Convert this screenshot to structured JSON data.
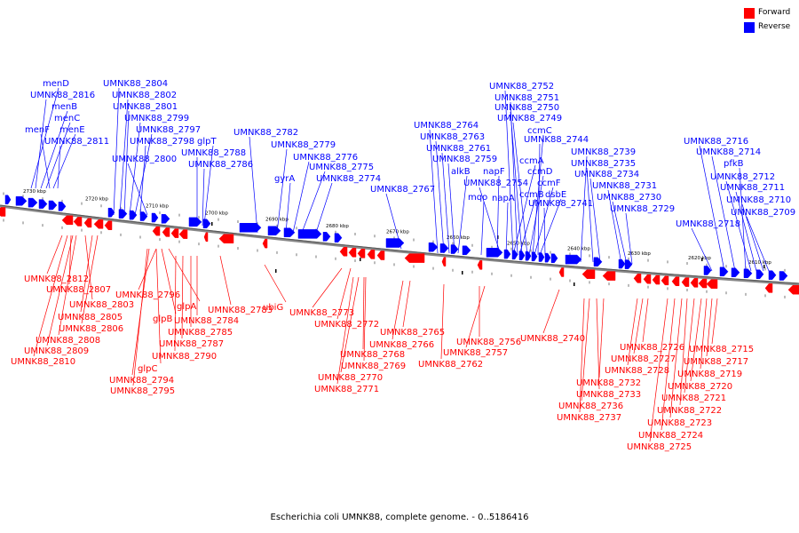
{
  "legend": {
    "forward": {
      "label": "Forward",
      "color": "#ff0000"
    },
    "reverse": {
      "label": "Reverse",
      "color": "#0000ff"
    }
  },
  "caption": "Escherichia coli UMNK88, complete genome. - 0..5186416",
  "ticks": [
    "2730 kbp",
    "2720 kbp",
    "2710 kbp",
    "2700 kbp",
    "2690 kbp",
    "2680 kbp",
    "2670 kbp",
    "2660 kbp",
    "2650 kbp",
    "2640 kbp",
    "2630 kbp",
    "2620 kbp",
    "2610 kbp"
  ],
  "reverse_labels": [
    "menD",
    "UMNK88_2816",
    "menB",
    "menC",
    "menF",
    "menE",
    "UMNK88_2811",
    "UMNK88_2804",
    "UMNK88_2802",
    "UMNK88_2801",
    "UMNK88_2799",
    "UMNK88_2797",
    "UMNK88_2798",
    "glpT",
    "UMNK88_2800",
    "UMNK88_2788",
    "UMNK88_2786",
    "UMNK88_2782",
    "UMNK88_2779",
    "UMNK88_2776",
    "UMNK88_2775",
    "gyrA",
    "UMNK88_2774",
    "UMNK88_2767",
    "UMNK88_2764",
    "UMNK88_2763",
    "UMNK88_2761",
    "UMNK88_2759",
    "alkB",
    "mqo",
    "napF",
    "UMNK88_2754",
    "napA",
    "UMNK88_2752",
    "UMNK88_2751",
    "UMNK88_2750",
    "UMNK88_2749",
    "ccmC",
    "UMNK88_2744",
    "ccmA",
    "ccmD",
    "ccmB",
    "ccmF",
    "dsbE",
    "UMNK88_2741",
    "UMNK88_2739",
    "UMNK88_2735",
    "UMNK88_2734",
    "UMNK88_2731",
    "UMNK88_2730",
    "UMNK88_2729",
    "UMNK88_2716",
    "UMNK88_2714",
    "pfkB",
    "UMNK88_2712",
    "UMNK88_2711",
    "UMNK88_2710",
    "UMNK88_2709",
    "UMNK88_2718"
  ],
  "forward_labels": [
    "UMNK88_2812",
    "UMNK88_2807",
    "UMNK88_2803",
    "UMNK88_2805",
    "UMNK88_2806",
    "UMNK88_2808",
    "UMNK88_2809",
    "UMNK88_2810",
    "UMNK88_2796",
    "glpA",
    "glpB",
    "UMNK88_2785",
    "UMNK88_2784",
    "UMNK88_2787",
    "UMNK88_2790",
    "glpC",
    "UMNK88_2794",
    "UMNK88_2795",
    "UMNK88_2783",
    "ubiG",
    "UMNK88_2773",
    "UMNK88_2772",
    "UMNK88_2768",
    "UMNK88_2769",
    "UMNK88_2770",
    "UMNK88_2771",
    "UMNK88_2765",
    "UMNK88_2766",
    "UMNK88_2762",
    "UMNK88_2756",
    "UMNK88_2757",
    "UMNK88_2740",
    "UMNK88_2726",
    "UMNK88_2727",
    "UMNK88_2728",
    "UMNK88_2732",
    "UMNK88_2733",
    "UMNK88_2736",
    "UMNK88_2737",
    "UMNK88_2715",
    "UMNK88_2717",
    "UMNK88_2719",
    "UMNK88_2720",
    "UMNK88_2721",
    "UMNK88_2722",
    "UMNK88_2723",
    "UMNK88_2724",
    "UMNK88_2725"
  ]
}
